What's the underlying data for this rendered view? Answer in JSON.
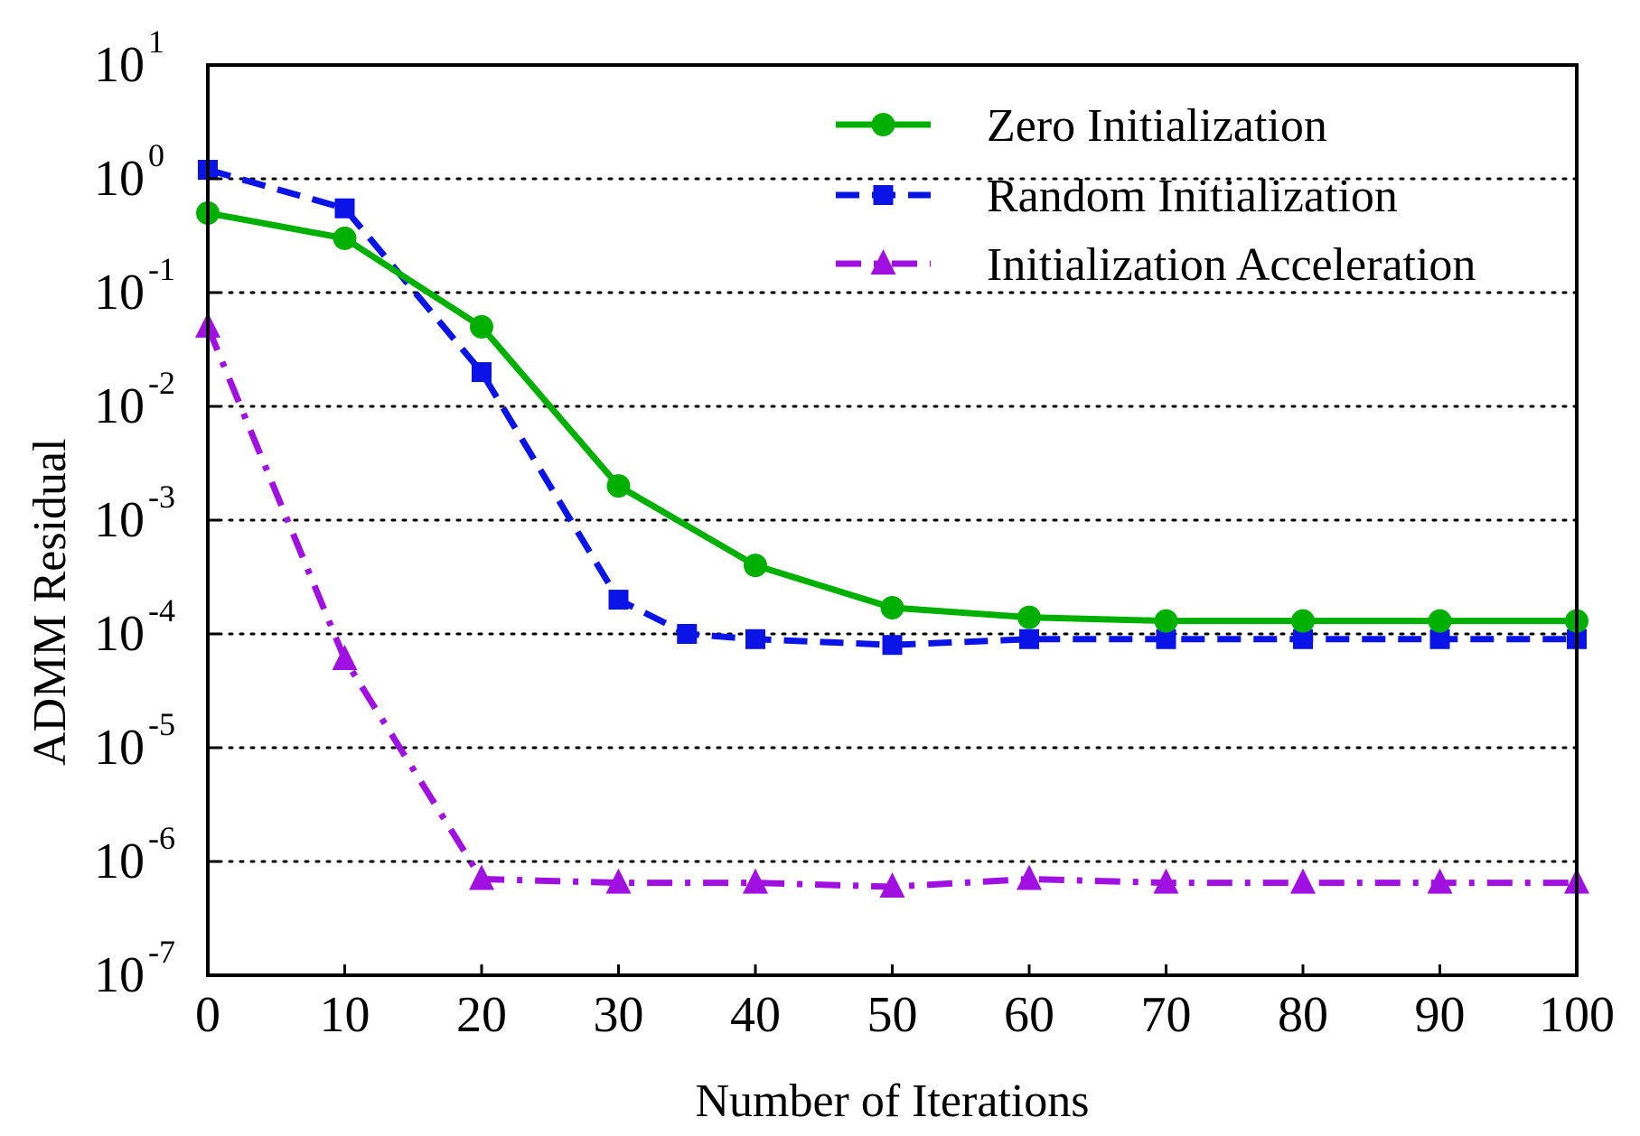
{
  "chart_data": {
    "type": "line",
    "title": "",
    "xlabel": "Number of Iterations",
    "ylabel": "ADMM Residual",
    "xlim": [
      0,
      100
    ],
    "ylim_log10": [
      -7,
      1
    ],
    "yscale": "log",
    "x_ticks": [
      0,
      10,
      20,
      30,
      40,
      50,
      60,
      70,
      80,
      90,
      100
    ],
    "x_tick_labels": [
      "0",
      "10",
      "20",
      "30",
      "40",
      "50",
      "60",
      "70",
      "80",
      "90",
      "100"
    ],
    "y_tick_exponents": [
      1,
      0,
      -1,
      -2,
      -3,
      -4,
      -5,
      -6,
      -7
    ],
    "y_tick_exponent_labels": [
      "1",
      "0",
      "-1",
      "-2",
      "-3",
      "-4",
      "-5",
      "-6",
      "-7"
    ],
    "y_tick_base": "10",
    "grid": "horizontal dotted",
    "legend_position": "top-right",
    "series": [
      {
        "name": "Zero Initialization",
        "color": "#00b000",
        "line_style": "solid",
        "marker": "circle",
        "x": [
          0,
          10,
          20,
          30,
          40,
          50,
          60,
          70,
          80,
          90,
          100
        ],
        "y": [
          0.5,
          0.3,
          0.05,
          0.002,
          0.0004,
          0.00017,
          0.00014,
          0.00013,
          0.00013,
          0.00013,
          0.00013
        ]
      },
      {
        "name": "Random Initialization",
        "color": "#0a14e6",
        "line_style": "dashed",
        "marker": "square",
        "x": [
          0,
          10,
          20,
          30,
          35,
          40,
          50,
          60,
          70,
          80,
          90,
          100
        ],
        "y": [
          1.2,
          0.55,
          0.02,
          0.0002,
          0.0001,
          9e-05,
          8e-05,
          9e-05,
          9e-05,
          9e-05,
          9e-05,
          9e-05
        ]
      },
      {
        "name": "Initialization Acceleration",
        "color": "#a010e0",
        "line_style": "dashdot",
        "marker": "triangle",
        "x": [
          0,
          10,
          20,
          30,
          40,
          50,
          60,
          70,
          80,
          90,
          100
        ],
        "y": [
          0.05,
          6e-05,
          7e-07,
          6.5e-07,
          6.5e-07,
          6e-07,
          7e-07,
          6.5e-07,
          6.5e-07,
          6.5e-07,
          6.5e-07
        ]
      }
    ]
  }
}
